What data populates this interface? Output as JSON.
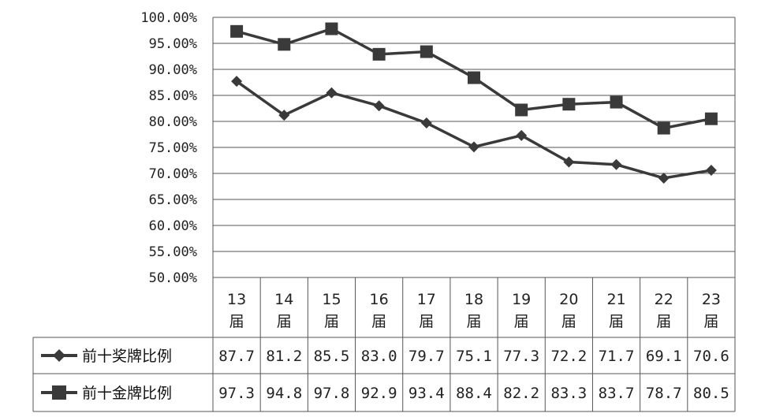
{
  "chart_data": {
    "type": "line",
    "categories": [
      "13届",
      "14届",
      "15届",
      "16届",
      "17届",
      "18届",
      "19届",
      "20届",
      "21届",
      "22届",
      "23届"
    ],
    "category_lines": [
      [
        "13",
        "届"
      ],
      [
        "14",
        "届"
      ],
      [
        "15",
        "届"
      ],
      [
        "16",
        "届"
      ],
      [
        "17",
        "届"
      ],
      [
        "18",
        "届"
      ],
      [
        "19",
        "届"
      ],
      [
        "20",
        "届"
      ],
      [
        "21",
        "届"
      ],
      [
        "22",
        "届"
      ],
      [
        "23",
        "届"
      ]
    ],
    "y_ticks": [
      "50.00%",
      "55.00%",
      "60.00%",
      "65.00%",
      "70.00%",
      "75.00%",
      "80.00%",
      "85.00%",
      "90.00%",
      "95.00%",
      "100.00%"
    ],
    "ylim": [
      50,
      100
    ],
    "grid": true,
    "legend": "data-table",
    "series": [
      {
        "name": "前十奖牌比例",
        "marker": "diamond",
        "values": [
          87.7,
          81.2,
          85.5,
          83.0,
          79.7,
          75.1,
          77.3,
          72.2,
          71.7,
          69.1,
          70.6
        ],
        "labels": [
          "87.7",
          "81.2",
          "85.5",
          "83.0",
          "79.7",
          "75.1",
          "77.3",
          "72.2",
          "71.7",
          "69.1",
          "70.6"
        ]
      },
      {
        "name": "前十金牌比例",
        "marker": "square",
        "values": [
          97.3,
          94.8,
          97.8,
          92.9,
          93.4,
          88.4,
          82.2,
          83.3,
          83.7,
          78.7,
          80.5
        ],
        "labels": [
          "97.3",
          "94.8",
          "97.8",
          "92.9",
          "93.4",
          "88.4",
          "82.2",
          "83.3",
          "83.7",
          "78.7",
          "80.5"
        ]
      }
    ],
    "colors": {
      "line": "#3a3a3a",
      "grid": "#555555",
      "background": "#ffffff"
    }
  }
}
